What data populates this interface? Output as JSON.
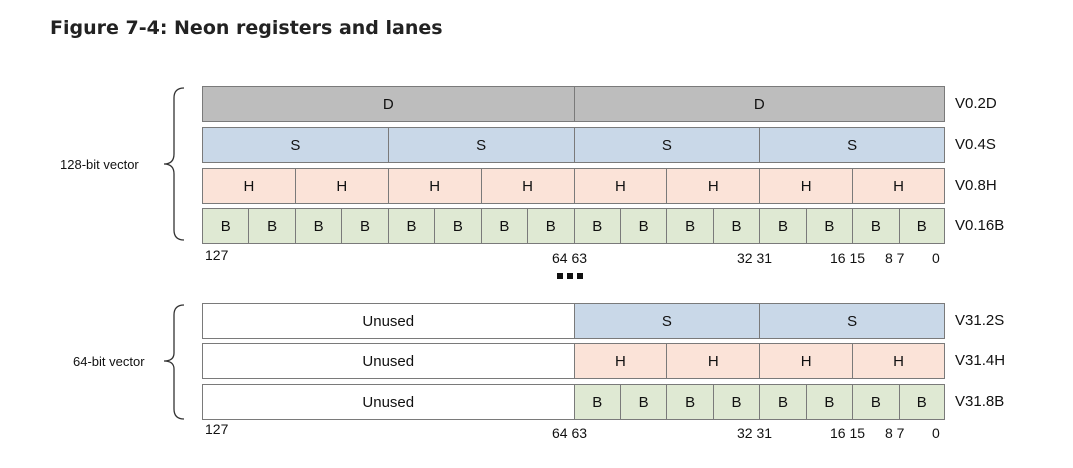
{
  "title": "Figure 7-4: Neon registers and lanes",
  "groups": [
    {
      "label": "128-bit vector",
      "registers": [
        {
          "name": "V0.2D",
          "lanes": [
            "D",
            "D"
          ],
          "lane_type": "d"
        },
        {
          "name": "V0.4S",
          "lanes": [
            "S",
            "S",
            "S",
            "S"
          ],
          "lane_type": "s"
        },
        {
          "name": "V0.8H",
          "lanes": [
            "H",
            "H",
            "H",
            "H",
            "H",
            "H",
            "H",
            "H"
          ],
          "lane_type": "h"
        },
        {
          "name": "V0.16B",
          "lanes": [
            "B",
            "B",
            "B",
            "B",
            "B",
            "B",
            "B",
            "B",
            "B",
            "B",
            "B",
            "B",
            "B",
            "B",
            "B",
            "B"
          ],
          "lane_type": "b"
        }
      ]
    },
    {
      "label": "64-bit vector",
      "registers": [
        {
          "name": "V31.2S",
          "unused": "Unused",
          "lanes": [
            "S",
            "S"
          ],
          "lane_type": "s"
        },
        {
          "name": "V31.4H",
          "unused": "Unused",
          "lanes": [
            "H",
            "H",
            "H",
            "H"
          ],
          "lane_type": "h"
        },
        {
          "name": "V31.8B",
          "unused": "Unused",
          "lanes": [
            "B",
            "B",
            "B",
            "B",
            "B",
            "B",
            "B",
            "B"
          ],
          "lane_type": "b"
        }
      ]
    }
  ],
  "bit_ticks": {
    "t127": "127",
    "t64_63": "64 63",
    "t32_31": "32 31",
    "t16_15": "16 15",
    "t8_7": "8 7",
    "t0": "0"
  },
  "colors": {
    "d": "#bdbdbd",
    "s": "#c9d8e8",
    "h": "#fbe3d8",
    "b": "#dfe9d3"
  }
}
